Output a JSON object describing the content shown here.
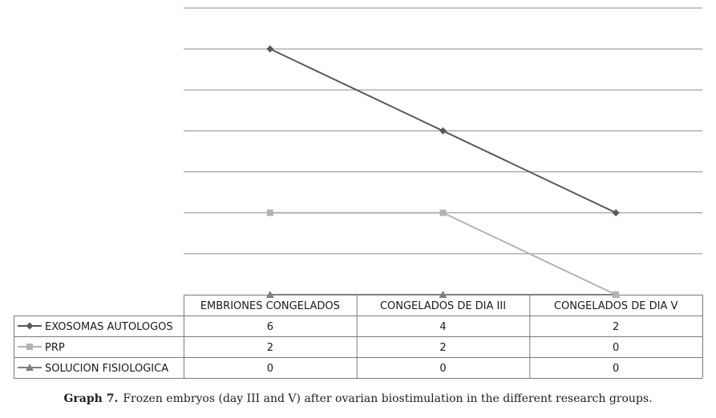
{
  "chart_data": {
    "type": "line",
    "categories": [
      "EMBRIONES CONGELADOS",
      "CONGELADOS DE DIA III",
      "CONGELADOS DE DIA V"
    ],
    "series": [
      {
        "name": "EXOSOMAS AUTOLOGOS",
        "values": [
          6,
          4,
          2
        ],
        "color": "#595959",
        "marker": "diamond"
      },
      {
        "name": "PRP",
        "values": [
          2,
          2,
          0
        ],
        "color": "#b3b3b3",
        "marker": "square"
      },
      {
        "name": "SOLUCION FISIOLOGICA",
        "values": [
          0,
          0,
          0
        ],
        "color": "#7f7f7f",
        "marker": "triangle"
      }
    ],
    "ylim": [
      0,
      7
    ],
    "grid": true,
    "legend": "data-table-left"
  },
  "caption": {
    "label": "Graph 7.",
    "text": "Frozen embryos (day III and V) after ovarian biostimulation in the different research groups."
  }
}
